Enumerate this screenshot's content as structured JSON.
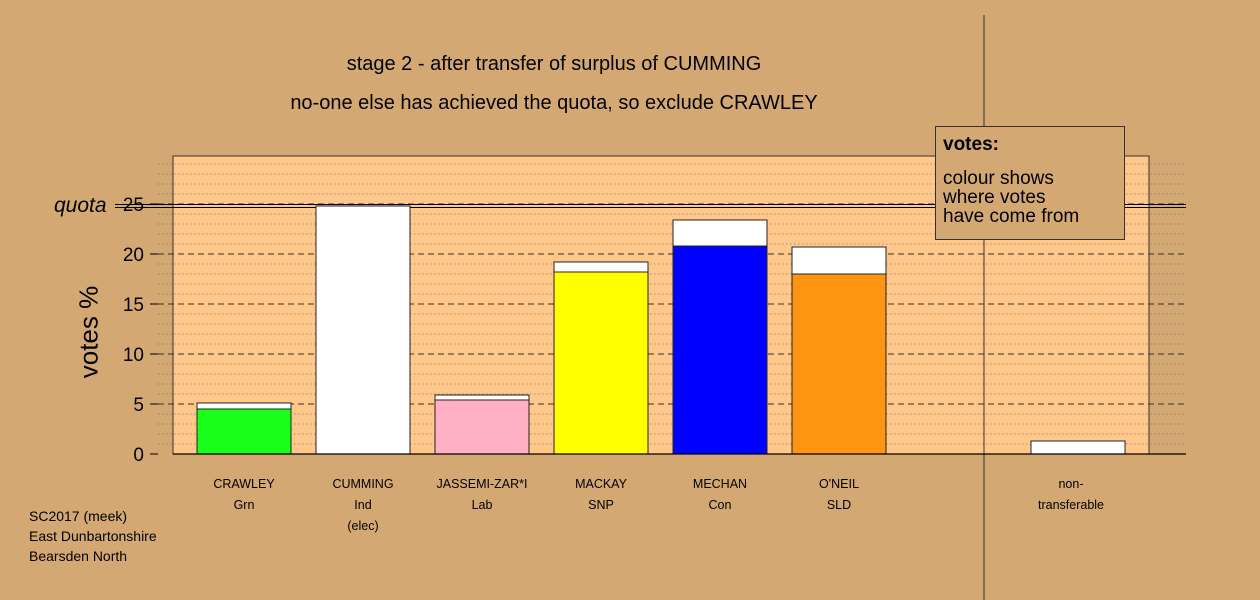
{
  "chart_data": {
    "type": "bar",
    "title": "stage 2 - after transfer of surplus of CUMMING",
    "subtitle": "no-one else has achieved the quota, so exclude CRAWLEY",
    "ylabel": "votes %",
    "ylim": [
      0,
      30
    ],
    "yticks": [
      0,
      5,
      10,
      15,
      20,
      25
    ],
    "quota": 24.8,
    "quota_label": "quota",
    "categories": [
      {
        "name": "CRAWLEY",
        "party": "Grn",
        "note": ""
      },
      {
        "name": "CUMMING",
        "party": "Ind",
        "note": "(elec)"
      },
      {
        "name": "JASSEMI-ZAR*I",
        "party": "Lab",
        "note": ""
      },
      {
        "name": "MACKAY",
        "party": "SNP",
        "note": ""
      },
      {
        "name": "MECHAN",
        "party": "Con",
        "note": ""
      },
      {
        "name": "O'NEIL",
        "party": "SLD",
        "note": ""
      }
    ],
    "series": [
      {
        "colors": [
          "#1aff1a",
          "#ffffff",
          "#ffb0c4",
          "#ffff00",
          "#0000ff",
          "#ff9410"
        ],
        "values": [
          4.5,
          24.8,
          5.4,
          18.2,
          20.8,
          18.0
        ]
      },
      {
        "colors": [
          "#ffffff",
          "#ffffff",
          "#ffffff",
          "#ffffff",
          "#ffffff",
          "#ffffff"
        ],
        "values": [
          0.6,
          0.0,
          0.5,
          1.0,
          2.6,
          2.7
        ]
      }
    ],
    "nontransferable": {
      "label_line1": "non-",
      "label_line2": "transferable",
      "value": 1.3
    },
    "grid": true,
    "legend_position": "top-right"
  },
  "legend": {
    "title": "votes:",
    "lines": [
      "colour shows",
      "where votes",
      "have come from"
    ]
  },
  "footer": [
    "SC2017 (meek)",
    "East Dunbartonshire",
    "Bearsden North"
  ]
}
